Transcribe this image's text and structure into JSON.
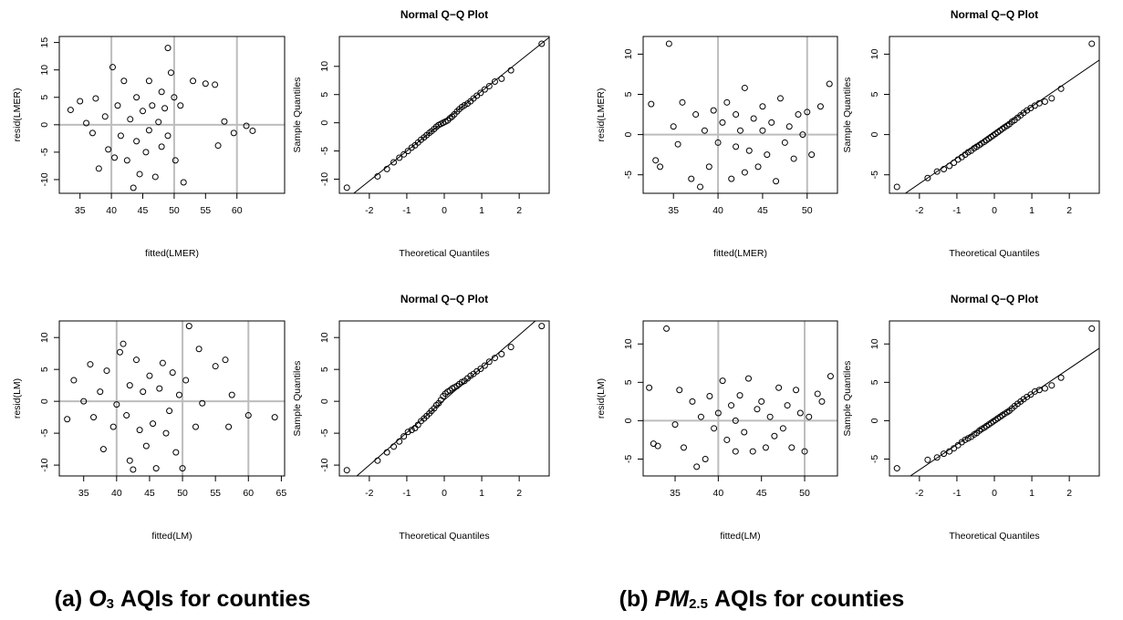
{
  "chart_data": [
    {
      "type": "scatter",
      "xlabel": "fitted(LMER)",
      "ylabel": "resid(LMER)",
      "xlim": [
        31.7,
        67.6
      ],
      "ylim": [
        -12.5,
        16.1
      ],
      "xticks": [
        35,
        40,
        45,
        50,
        55,
        60
      ],
      "yticks": [
        -10,
        -5,
        0,
        5,
        10,
        15
      ],
      "ref_lines": {
        "x": [
          40,
          50,
          60
        ],
        "y": [
          0
        ]
      },
      "x": [
        33.5,
        35,
        36,
        37,
        37.5,
        38,
        39,
        39.5,
        40.2,
        40.5,
        41,
        41.5,
        42,
        42.5,
        43,
        43.5,
        44,
        44,
        44.5,
        45,
        45.5,
        46,
        46,
        46.5,
        47,
        47.5,
        48,
        48,
        48.5,
        49,
        49,
        49.5,
        50,
        50.2,
        51,
        51.5,
        53,
        55,
        56.5,
        57,
        58,
        59.5,
        61.5,
        62.5
      ],
      "y": [
        2.7,
        4.3,
        0.3,
        -1.5,
        4.8,
        -8,
        1.5,
        -4.5,
        10.5,
        -6,
        3.5,
        -2,
        8,
        -6.5,
        1,
        -11.5,
        5,
        -3,
        -9,
        2.5,
        -5,
        8,
        -1,
        3.5,
        -9.5,
        0.5,
        6,
        -4,
        3,
        14,
        -2,
        9.5,
        5,
        -6.5,
        3.5,
        -10.5,
        8,
        7.5,
        7.3,
        -3.8,
        0.6,
        -1.5,
        -0.2,
        -1.1
      ]
    },
    {
      "type": "qq",
      "title": "Normal Q−Q Plot",
      "xlabel": "Theoretical Quantiles",
      "ylabel": "Sample Quantiles",
      "xlim": [
        -2.8,
        2.8
      ],
      "ylim": [
        -12.5,
        15.3
      ],
      "xticks": [
        -2,
        -1,
        0,
        1,
        2
      ],
      "yticks": [
        -10,
        -5,
        0,
        5,
        10
      ],
      "ref_line": {
        "intercept": 0.3,
        "slope": 5.3
      },
      "x": [
        -2.6,
        -1.78,
        -1.53,
        -1.35,
        -1.2,
        -1.08,
        -0.97,
        -0.87,
        -0.78,
        -0.7,
        -0.62,
        -0.54,
        -0.47,
        -0.4,
        -0.34,
        -0.27,
        -0.21,
        -0.15,
        -0.09,
        -0.03,
        0.03,
        0.09,
        0.15,
        0.21,
        0.27,
        0.34,
        0.4,
        0.47,
        0.54,
        0.62,
        0.7,
        0.78,
        0.87,
        0.97,
        1.08,
        1.2,
        1.35,
        1.53,
        1.78,
        2.6
      ],
      "y": [
        -11.5,
        -9.5,
        -8.2,
        -7,
        -6.2,
        -5.6,
        -5,
        -4.4,
        -4,
        -3.5,
        -3,
        -2.6,
        -2.2,
        -1.8,
        -1.5,
        -1.1,
        -0.7,
        -0.4,
        -0.2,
        0,
        0.2,
        0.4,
        0.8,
        1.1,
        1.5,
        2,
        2.4,
        2.8,
        3.1,
        3.4,
        3.8,
        4.3,
        4.8,
        5.3,
        5.9,
        6.5,
        7.3,
        7.8,
        9.3,
        14
      ]
    },
    {
      "type": "scatter",
      "xlabel": "fitted(LMER)",
      "ylabel": "resid(LMER)",
      "xlim": [
        31.6,
        53.4
      ],
      "ylim": [
        -7.3,
        12.2
      ],
      "xticks": [
        35,
        40,
        45,
        50
      ],
      "yticks": [
        -5,
        0,
        5,
        10
      ],
      "ref_lines": {
        "x": [
          40,
          50
        ],
        "y": [
          0
        ]
      },
      "x": [
        32.5,
        33,
        33.5,
        34.5,
        35,
        35.5,
        36,
        37,
        37.5,
        38,
        38.5,
        39,
        39.5,
        40,
        40.5,
        41,
        41.5,
        42,
        42,
        42.5,
        43,
        43,
        43.5,
        44,
        44.5,
        45,
        45,
        45.5,
        46,
        46.5,
        47,
        47.5,
        48,
        48.5,
        49,
        49.5,
        50,
        50.5,
        51.5,
        52.5
      ],
      "y": [
        3.8,
        -3.2,
        -4,
        11.3,
        1,
        -1.2,
        4,
        -5.5,
        2.5,
        -6.5,
        0.5,
        -4,
        3,
        -1,
        1.5,
        4,
        -5.5,
        2.5,
        -1.5,
        0.5,
        5.8,
        -4.7,
        -2,
        2,
        -4,
        0.5,
        3.5,
        -2.5,
        1.5,
        -5.8,
        4.5,
        -1,
        1,
        -3,
        2.5,
        0,
        2.8,
        -2.5,
        3.5,
        6.3
      ]
    },
    {
      "type": "qq",
      "title": "Normal Q−Q Plot",
      "xlabel": "Theoretical Quantiles",
      "ylabel": "Sample Quantiles",
      "xlim": [
        -2.8,
        2.8
      ],
      "ylim": [
        -7.3,
        12.2
      ],
      "xticks": [
        -2,
        -1,
        0,
        1,
        2
      ],
      "yticks": [
        -5,
        0,
        5,
        10
      ],
      "ref_line": {
        "intercept": 0.3,
        "slope": 3.2
      },
      "x": [
        -2.6,
        -1.78,
        -1.53,
        -1.35,
        -1.2,
        -1.08,
        -0.97,
        -0.87,
        -0.78,
        -0.7,
        -0.62,
        -0.54,
        -0.47,
        -0.4,
        -0.34,
        -0.27,
        -0.21,
        -0.15,
        -0.09,
        -0.03,
        0.03,
        0.09,
        0.15,
        0.21,
        0.27,
        0.34,
        0.4,
        0.47,
        0.54,
        0.62,
        0.7,
        0.78,
        0.87,
        0.97,
        1.08,
        1.2,
        1.35,
        1.53,
        1.78,
        2.6
      ],
      "y": [
        -6.5,
        -5.4,
        -4.6,
        -4.3,
        -3.9,
        -3.5,
        -3.1,
        -2.8,
        -2.5,
        -2.2,
        -2,
        -1.7,
        -1.5,
        -1.3,
        -1.1,
        -0.9,
        -0.7,
        -0.5,
        -0.3,
        -0.1,
        0.1,
        0.3,
        0.5,
        0.7,
        0.9,
        1.1,
        1.3,
        1.6,
        1.8,
        2.1,
        2.4,
        2.7,
        3,
        3.3,
        3.6,
        3.9,
        4.1,
        4.5,
        5.7,
        11.3
      ]
    },
    {
      "type": "scatter",
      "xlabel": "fitted(LM)",
      "ylabel": "resid(LM)",
      "xlim": [
        31.3,
        65.5
      ],
      "ylim": [
        -11.7,
        12.6
      ],
      "xticks": [
        35,
        40,
        45,
        50,
        55,
        60,
        65
      ],
      "yticks": [
        -10,
        -5,
        0,
        5,
        10
      ],
      "ref_lines": {
        "x": [
          40,
          50,
          60
        ],
        "y": [
          0
        ]
      },
      "x": [
        32.5,
        33.5,
        35,
        36,
        36.5,
        37.5,
        38,
        38.5,
        39.5,
        40,
        40.5,
        41,
        41.5,
        42,
        42,
        42.5,
        43,
        43.5,
        44,
        44.5,
        45,
        45.5,
        46,
        46.5,
        47,
        47.5,
        48,
        48.5,
        49,
        49.5,
        50,
        50.5,
        51,
        52,
        52.5,
        53,
        55,
        56.5,
        57,
        57.5,
        60,
        64
      ],
      "y": [
        -2.8,
        3.3,
        0,
        5.8,
        -2.5,
        1.5,
        -7.5,
        4.8,
        -4,
        -0.5,
        7.7,
        9,
        -2.2,
        -9.3,
        2.5,
        -10.7,
        6.5,
        -4.5,
        1.5,
        -7,
        4,
        -3.5,
        -10.5,
        2,
        6,
        -5,
        -1.5,
        4.5,
        -8,
        1,
        -10.5,
        3.3,
        11.8,
        -4,
        8.2,
        -0.3,
        5.5,
        6.5,
        -4,
        1,
        -2.2,
        -2.5
      ]
    },
    {
      "type": "qq",
      "title": "Normal Q−Q Plot",
      "xlabel": "Theoretical Quantiles",
      "ylabel": "Sample Quantiles",
      "xlim": [
        -2.8,
        2.8
      ],
      "ylim": [
        -11.7,
        12.6
      ],
      "xticks": [
        -2,
        -1,
        0,
        1,
        2
      ],
      "yticks": [
        -10,
        -5,
        0,
        5,
        10
      ],
      "ref_line": {
        "intercept": 0.2,
        "slope": 5.1
      },
      "x": [
        -2.6,
        -1.78,
        -1.53,
        -1.35,
        -1.2,
        -1.08,
        -0.97,
        -0.87,
        -0.78,
        -0.7,
        -0.62,
        -0.54,
        -0.47,
        -0.4,
        -0.34,
        -0.27,
        -0.21,
        -0.15,
        -0.09,
        -0.03,
        0.03,
        0.09,
        0.15,
        0.21,
        0.27,
        0.34,
        0.4,
        0.47,
        0.54,
        0.62,
        0.7,
        0.78,
        0.87,
        0.97,
        1.08,
        1.2,
        1.35,
        1.53,
        1.78,
        2.6
      ],
      "y": [
        -10.8,
        -9.3,
        -8,
        -7.1,
        -6.3,
        -5.5,
        -4.8,
        -4.5,
        -4.2,
        -3.7,
        -3.1,
        -2.7,
        -2.3,
        -1.9,
        -1.5,
        -1.1,
        -0.6,
        -0.3,
        0.2,
        0.8,
        1.2,
        1.5,
        1.7,
        2,
        2.2,
        2.4,
        2.7,
        3,
        3.2,
        3.6,
        4,
        4.3,
        4.7,
        5.1,
        5.6,
        6.2,
        6.8,
        7.4,
        8.5,
        11.8
      ]
    },
    {
      "type": "scatter",
      "xlabel": "fitted(LM)",
      "ylabel": "resid(LM)",
      "xlim": [
        31.3,
        53.8
      ],
      "ylim": [
        -7.2,
        13
      ],
      "xticks": [
        35,
        40,
        45,
        50
      ],
      "yticks": [
        -5,
        0,
        5,
        10
      ],
      "ref_lines": {
        "x": [
          40,
          50
        ],
        "y": [
          0
        ]
      },
      "x": [
        32,
        32.5,
        33,
        34,
        35,
        35.5,
        36,
        37,
        37.5,
        38,
        38.5,
        39,
        39.5,
        40,
        40.5,
        41,
        41.5,
        42,
        42,
        42.5,
        43,
        43.5,
        44,
        44.5,
        45,
        45.5,
        46,
        46.5,
        47,
        47.5,
        48,
        48.5,
        49,
        49.5,
        50,
        50.5,
        51.5,
        52,
        53
      ],
      "y": [
        4.3,
        -3,
        -3.3,
        12,
        -0.5,
        4,
        -3.5,
        2.5,
        -6,
        0.5,
        -5,
        3.2,
        -1,
        1,
        5.2,
        -2.5,
        2,
        -4,
        0,
        3.3,
        -1.5,
        5.5,
        -4,
        1.5,
        2.5,
        -3.5,
        0.5,
        -2,
        4.3,
        -1,
        2,
        -3.5,
        4,
        1,
        -4,
        0.5,
        3.5,
        2.5,
        5.8
      ]
    },
    {
      "type": "qq",
      "title": "Normal Q−Q Plot",
      "xlabel": "Theoretical Quantiles",
      "ylabel": "Sample Quantiles",
      "xlim": [
        -2.8,
        2.8
      ],
      "ylim": [
        -7.2,
        13
      ],
      "xticks": [
        -2,
        -1,
        0,
        1,
        2
      ],
      "yticks": [
        -5,
        0,
        5,
        10
      ],
      "ref_line": {
        "intercept": 0.2,
        "slope": 3.3
      },
      "x": [
        -2.6,
        -1.78,
        -1.53,
        -1.35,
        -1.2,
        -1.08,
        -0.97,
        -0.87,
        -0.78,
        -0.7,
        -0.62,
        -0.54,
        -0.47,
        -0.4,
        -0.34,
        -0.27,
        -0.21,
        -0.15,
        -0.09,
        -0.03,
        0.03,
        0.09,
        0.15,
        0.21,
        0.27,
        0.34,
        0.4,
        0.47,
        0.54,
        0.62,
        0.7,
        0.78,
        0.87,
        0.97,
        1.08,
        1.2,
        1.35,
        1.53,
        1.78,
        2.6
      ],
      "y": [
        -6.2,
        -5.1,
        -4.8,
        -4.3,
        -4,
        -3.6,
        -3.2,
        -2.8,
        -2.5,
        -2.3,
        -2.1,
        -1.8,
        -1.6,
        -1.3,
        -1.1,
        -0.9,
        -0.7,
        -0.5,
        -0.3,
        -0.1,
        0.1,
        0.3,
        0.5,
        0.7,
        0.9,
        1.1,
        1.3,
        1.6,
        1.9,
        2.2,
        2.5,
        2.8,
        3.1,
        3.4,
        3.8,
        4,
        4.2,
        4.6,
        5.6,
        12
      ]
    }
  ],
  "captions": [
    {
      "label": "(a)",
      "var": "O",
      "sub": "3",
      "text": "AQIs for counties"
    },
    {
      "label": "(b)",
      "var": "PM",
      "sub": "2.5",
      "text": "AQIs for counties"
    }
  ]
}
